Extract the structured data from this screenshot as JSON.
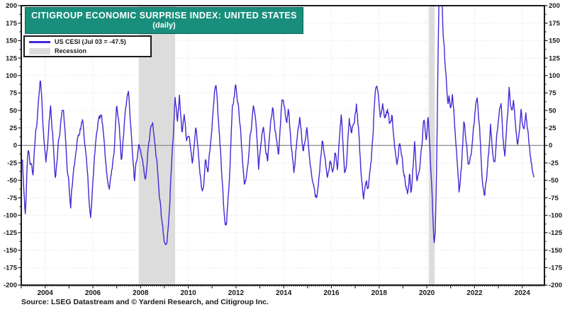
{
  "header": {
    "title": "CITIGROUP ECONOMIC SURPRISE INDEX: UNITED STATES",
    "subtitle": "(daily)"
  },
  "legend": {
    "series_label": "US CESI (Jul 03 = -47.5)",
    "recession_label": "Recession"
  },
  "footer": {
    "source": "Source: LSEG Datastream and © Yardeni Research, and Citigroup Inc."
  },
  "colors": {
    "banner_bg": "#198e7c",
    "banner_text": "#ffffff",
    "line": "#4628d4",
    "recession_band": "#dcdcdc",
    "grid": "#e2e2e2",
    "zero_line": "#8a8a8a",
    "frame": "#1a1a1a",
    "label_text": "#1a1a1a"
  },
  "chart_data": {
    "type": "line",
    "title": "CITIGROUP ECONOMIC SURPRISE INDEX: UNITED STATES",
    "subtitle": "(daily)",
    "series_name": "US CESI",
    "latest_point": {
      "date_label": "Jul 03",
      "value": -47.5
    },
    "ylim": [
      -200,
      200
    ],
    "y_tick_step": 25,
    "y_minor_step": 12.5,
    "y_tick_labels": [
      200,
      175,
      150,
      125,
      100,
      75,
      50,
      25,
      0,
      -25,
      -50,
      -75,
      -100,
      -125,
      -150,
      -175,
      -200
    ],
    "x_range_years": [
      2003.0,
      2024.93
    ],
    "x_tick_labels": [
      2004,
      2006,
      2008,
      2010,
      2012,
      2014,
      2016,
      2018,
      2020,
      2022,
      2024
    ],
    "grid": {
      "horizontal_step": 25,
      "vertical_every_years": 2,
      "zero_line": true
    },
    "legend_position": "top-left",
    "recessions": [
      [
        2007.92,
        2009.45
      ],
      [
        2020.08,
        2020.33
      ]
    ],
    "render_noise_amplitude": 6,
    "keypoints": [
      [
        2003.05,
        -18
      ],
      [
        2003.1,
        -55
      ],
      [
        2003.17,
        -90
      ],
      [
        2003.28,
        -10
      ],
      [
        2003.4,
        -30
      ],
      [
        2003.49,
        -45
      ],
      [
        2003.6,
        15
      ],
      [
        2003.72,
        60
      ],
      [
        2003.8,
        92
      ],
      [
        2003.9,
        35
      ],
      [
        2004.03,
        -25
      ],
      [
        2004.13,
        20
      ],
      [
        2004.23,
        54
      ],
      [
        2004.33,
        10
      ],
      [
        2004.42,
        -52
      ],
      [
        2004.55,
        5
      ],
      [
        2004.65,
        30
      ],
      [
        2004.77,
        53
      ],
      [
        2004.9,
        -20
      ],
      [
        2005.0,
        -60
      ],
      [
        2005.07,
        -88
      ],
      [
        2005.2,
        -30
      ],
      [
        2005.35,
        10
      ],
      [
        2005.5,
        25
      ],
      [
        2005.6,
        29
      ],
      [
        2005.68,
        -10
      ],
      [
        2005.78,
        -45
      ],
      [
        2005.9,
        -109
      ],
      [
        2006.0,
        -55
      ],
      [
        2006.1,
        0
      ],
      [
        2006.25,
        28
      ],
      [
        2006.36,
        43
      ],
      [
        2006.45,
        15
      ],
      [
        2006.55,
        -25
      ],
      [
        2006.7,
        -58
      ],
      [
        2006.8,
        -35
      ],
      [
        2006.9,
        -15
      ],
      [
        2007.0,
        66
      ],
      [
        2007.1,
        30
      ],
      [
        2007.2,
        -25
      ],
      [
        2007.32,
        25
      ],
      [
        2007.42,
        60
      ],
      [
        2007.5,
        81
      ],
      [
        2007.6,
        20
      ],
      [
        2007.74,
        -50
      ],
      [
        2007.85,
        -20
      ],
      [
        2007.95,
        -5
      ],
      [
        2008.05,
        -25
      ],
      [
        2008.2,
        -53
      ],
      [
        2008.35,
        10
      ],
      [
        2008.5,
        38
      ],
      [
        2008.6,
        5
      ],
      [
        2008.7,
        -30
      ],
      [
        2008.8,
        -75
      ],
      [
        2008.9,
        -110
      ],
      [
        2009.0,
        -139
      ],
      [
        2009.1,
        -142
      ],
      [
        2009.2,
        -95
      ],
      [
        2009.3,
        -30
      ],
      [
        2009.45,
        68
      ],
      [
        2009.55,
        30
      ],
      [
        2009.63,
        61
      ],
      [
        2009.73,
        20
      ],
      [
        2009.83,
        39
      ],
      [
        2009.93,
        10
      ],
      [
        2010.03,
        25
      ],
      [
        2010.18,
        -28
      ],
      [
        2010.32,
        33
      ],
      [
        2010.45,
        -30
      ],
      [
        2010.55,
        -62
      ],
      [
        2010.62,
        -67
      ],
      [
        2010.72,
        -25
      ],
      [
        2010.82,
        -42
      ],
      [
        2010.92,
        -8
      ],
      [
        2011.02,
        45
      ],
      [
        2011.16,
        95
      ],
      [
        2011.28,
        25
      ],
      [
        2011.38,
        -25
      ],
      [
        2011.5,
        -99
      ],
      [
        2011.6,
        -114
      ],
      [
        2011.72,
        -52
      ],
      [
        2011.85,
        55
      ],
      [
        2011.98,
        86
      ],
      [
        2012.1,
        60
      ],
      [
        2012.2,
        25
      ],
      [
        2012.35,
        -62
      ],
      [
        2012.48,
        -35
      ],
      [
        2012.6,
        10
      ],
      [
        2012.74,
        54
      ],
      [
        2012.85,
        20
      ],
      [
        2012.95,
        -32
      ],
      [
        2013.05,
        5
      ],
      [
        2013.15,
        27
      ],
      [
        2013.25,
        -5
      ],
      [
        2013.33,
        -23
      ],
      [
        2013.45,
        30
      ],
      [
        2013.55,
        54
      ],
      [
        2013.65,
        20
      ],
      [
        2013.78,
        -15
      ],
      [
        2013.93,
        69
      ],
      [
        2014.05,
        45
      ],
      [
        2014.12,
        20
      ],
      [
        2014.2,
        55
      ],
      [
        2014.3,
        5
      ],
      [
        2014.43,
        -42
      ],
      [
        2014.55,
        0
      ],
      [
        2014.68,
        38
      ],
      [
        2014.82,
        -10
      ],
      [
        2014.97,
        28
      ],
      [
        2015.1,
        -25
      ],
      [
        2015.27,
        -67
      ],
      [
        2015.38,
        -73
      ],
      [
        2015.5,
        -30
      ],
      [
        2015.62,
        6
      ],
      [
        2015.72,
        -25
      ],
      [
        2015.83,
        -48
      ],
      [
        2015.95,
        -20
      ],
      [
        2016.05,
        -40
      ],
      [
        2016.15,
        -15
      ],
      [
        2016.25,
        -35
      ],
      [
        2016.42,
        43
      ],
      [
        2016.55,
        -40
      ],
      [
        2016.65,
        -15
      ],
      [
        2016.75,
        36
      ],
      [
        2016.85,
        15
      ],
      [
        2016.95,
        30
      ],
      [
        2017.05,
        57
      ],
      [
        2017.15,
        20
      ],
      [
        2017.25,
        -40
      ],
      [
        2017.34,
        -78
      ],
      [
        2017.45,
        -45
      ],
      [
        2017.55,
        -62
      ],
      [
        2017.68,
        -20
      ],
      [
        2017.78,
        40
      ],
      [
        2017.85,
        84
      ],
      [
        2017.95,
        70
      ],
      [
        2018.05,
        45
      ],
      [
        2018.15,
        60
      ],
      [
        2018.25,
        38
      ],
      [
        2018.35,
        52
      ],
      [
        2018.45,
        30
      ],
      [
        2018.55,
        45
      ],
      [
        2018.65,
        5
      ],
      [
        2018.74,
        -28
      ],
      [
        2018.85,
        8
      ],
      [
        2018.95,
        -15
      ],
      [
        2019.05,
        -45
      ],
      [
        2019.19,
        -67
      ],
      [
        2019.28,
        -35
      ],
      [
        2019.34,
        -70
      ],
      [
        2019.42,
        -30
      ],
      [
        2019.49,
        -3
      ],
      [
        2019.58,
        -57
      ],
      [
        2019.68,
        -35
      ],
      [
        2019.78,
        -5
      ],
      [
        2019.88,
        43
      ],
      [
        2019.98,
        5
      ],
      [
        2020.06,
        45
      ],
      [
        2020.12,
        10
      ],
      [
        2020.18,
        -40
      ],
      [
        2020.25,
        -100
      ],
      [
        2020.3,
        -144
      ],
      [
        2020.35,
        -125
      ],
      [
        2020.4,
        -60
      ],
      [
        2020.44,
        40
      ],
      [
        2020.48,
        150
      ],
      [
        2020.52,
        235
      ],
      [
        2020.56,
        265
      ],
      [
        2020.6,
        250
      ],
      [
        2020.64,
        205
      ],
      [
        2020.68,
        160
      ],
      [
        2020.73,
        140
      ],
      [
        2020.78,
        105
      ],
      [
        2020.83,
        80
      ],
      [
        2020.88,
        58
      ],
      [
        2020.93,
        72
      ],
      [
        2021.0,
        55
      ],
      [
        2021.07,
        70
      ],
      [
        2021.15,
        40
      ],
      [
        2021.25,
        -10
      ],
      [
        2021.35,
        -62
      ],
      [
        2021.45,
        -28
      ],
      [
        2021.55,
        33
      ],
      [
        2021.65,
        3
      ],
      [
        2021.75,
        -25
      ],
      [
        2021.85,
        -10
      ],
      [
        2021.95,
        28
      ],
      [
        2022.05,
        55
      ],
      [
        2022.12,
        68
      ],
      [
        2022.22,
        15
      ],
      [
        2022.32,
        -45
      ],
      [
        2022.42,
        -77
      ],
      [
        2022.52,
        -48
      ],
      [
        2022.6,
        -12
      ],
      [
        2022.67,
        22
      ],
      [
        2022.75,
        -8
      ],
      [
        2022.85,
        -27
      ],
      [
        2022.95,
        18
      ],
      [
        2023.05,
        42
      ],
      [
        2023.12,
        59
      ],
      [
        2023.2,
        12
      ],
      [
        2023.27,
        -13
      ],
      [
        2023.37,
        45
      ],
      [
        2023.45,
        81
      ],
      [
        2023.55,
        48
      ],
      [
        2023.63,
        65
      ],
      [
        2023.72,
        25
      ],
      [
        2023.8,
        -8
      ],
      [
        2023.88,
        28
      ],
      [
        2023.95,
        48
      ],
      [
        2024.05,
        18
      ],
      [
        2024.15,
        38
      ],
      [
        2024.25,
        12
      ],
      [
        2024.33,
        -12
      ],
      [
        2024.42,
        -33
      ],
      [
        2024.5,
        -47.5
      ]
    ]
  }
}
